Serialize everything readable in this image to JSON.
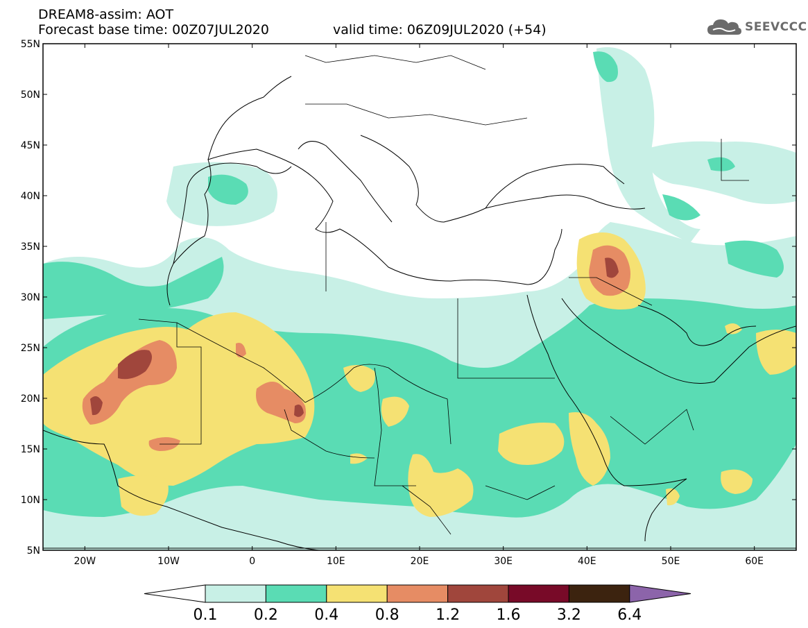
{
  "header": {
    "title": "DREAM8-assim: AOT",
    "base_time": "Forecast base time: 00Z07JUL2020",
    "valid_time": "valid time: 06Z09JUL2020 (+54)"
  },
  "logo": {
    "text": "SEEVCCC",
    "icon": "cloud-icon"
  },
  "map": {
    "lon_range": [
      -25,
      65
    ],
    "lat_range": [
      5,
      55
    ],
    "lat_ticks": [
      "5N",
      "10N",
      "15N",
      "20N",
      "25N",
      "30N",
      "35N",
      "40N",
      "45N",
      "50N",
      "55N"
    ],
    "lon_ticks": [
      "20W",
      "10W",
      "0",
      "10E",
      "20E",
      "30E",
      "40E",
      "50E",
      "60E"
    ]
  },
  "colorbar": {
    "labels": [
      "0.1",
      "0.2",
      "0.4",
      "0.8",
      "1.2",
      "1.6",
      "3.2",
      "6.4"
    ],
    "colors": [
      "#ffffff",
      "#c8f0e6",
      "#5adcb4",
      "#f5e173",
      "#e68c64",
      "#a0463c",
      "#780a28",
      "#3c230f",
      "#8c64aa"
    ]
  }
}
